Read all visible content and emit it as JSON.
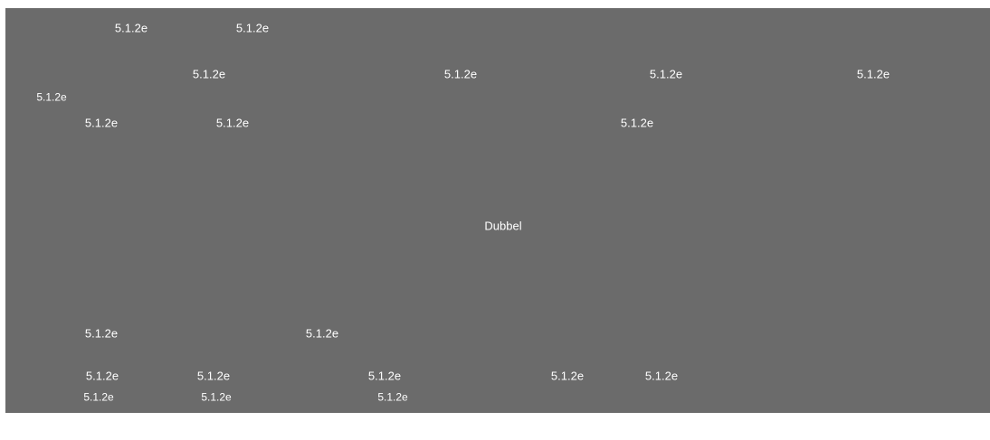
{
  "canvas": {
    "background": "#6b6b6b",
    "center_label": "Dubbel",
    "labels": [
      "5.1.2e",
      "5.1.2e",
      "5.1.2e",
      "5.1.2e",
      "5.1.2e",
      "5.1.2e",
      "5.1.2e",
      "5.1.2e",
      "5.1.2e",
      "5.1.2e",
      "5.1.2e",
      "5.1.2e",
      "5.1.2e",
      "5.1.2e",
      "5.1.2e",
      "5.1.2e",
      "5.1.2e",
      "5.1.2e",
      "5.1.2e",
      "5.1.2e"
    ]
  }
}
